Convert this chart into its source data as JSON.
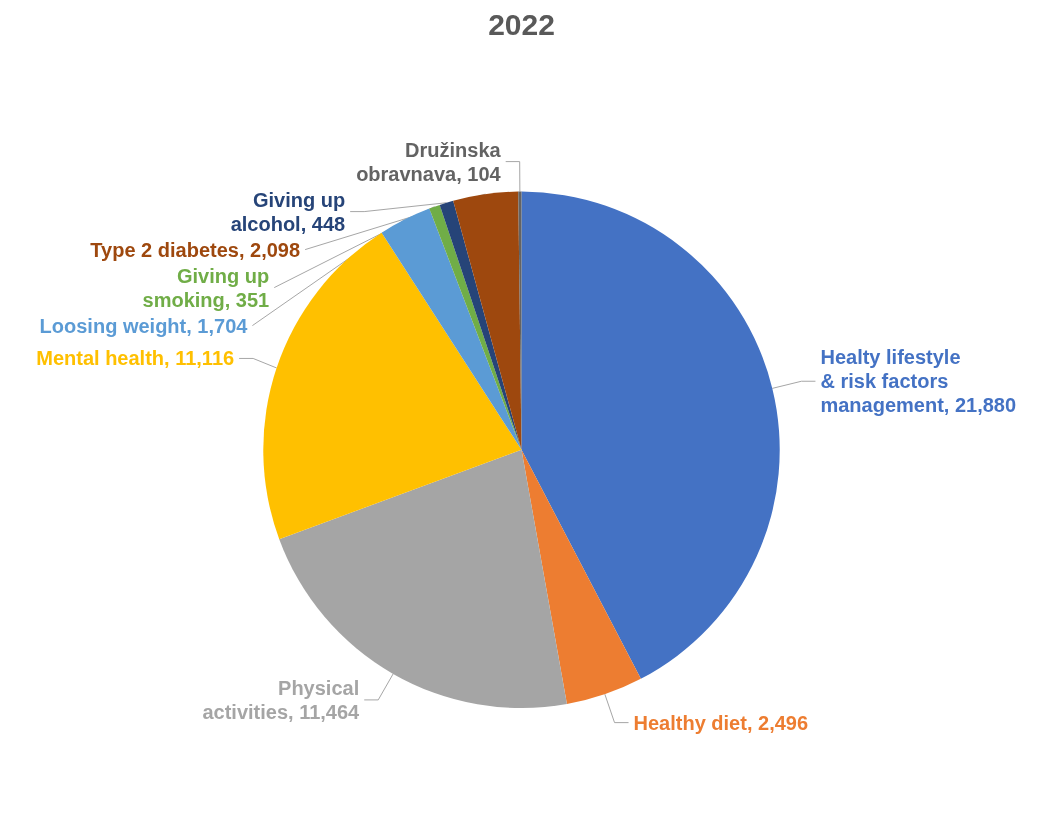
{
  "chart_data": {
    "type": "pie",
    "title": "2022",
    "categories": [
      "Healty lifestyle & risk factors management",
      "Healthy diet",
      "Physical activities",
      "Mental health",
      "Loosing weight",
      "Giving up smoking",
      "Giving up alcohol",
      "Type 2 diabetes",
      "Družinska obravnava"
    ],
    "values": [
      21880,
      2496,
      11464,
      11116,
      1704,
      351,
      448,
      2098,
      104
    ],
    "value_labels": [
      "21,880",
      "2,496",
      "11,464",
      "11,116",
      "1,704",
      "351",
      "448",
      "2,098",
      "104"
    ],
    "colors": [
      "#4472c4",
      "#ed7d31",
      "#a5a5a5",
      "#ffc000",
      "#5b9bd5",
      "#70ad47",
      "#264478",
      "#9e480e",
      "#636363"
    ],
    "legend": false
  }
}
